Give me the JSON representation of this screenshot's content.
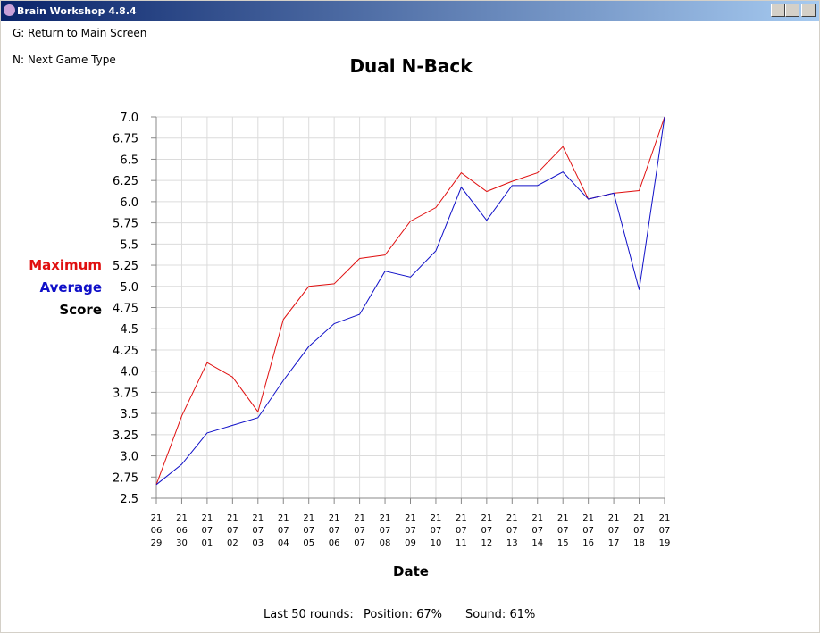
{
  "window": {
    "title": "Brain Workshop 4.8.4"
  },
  "menu": [
    "G: Return to Main Screen",
    "N: Next Game Type"
  ],
  "chart_data": {
    "type": "line",
    "title": "Dual N-Back",
    "xlabel": "Date",
    "ylabel": "Score",
    "categories": [
      [
        "21",
        "06",
        "29"
      ],
      [
        "21",
        "06",
        "30"
      ],
      [
        "21",
        "07",
        "01"
      ],
      [
        "21",
        "07",
        "02"
      ],
      [
        "21",
        "07",
        "03"
      ],
      [
        "21",
        "07",
        "04"
      ],
      [
        "21",
        "07",
        "05"
      ],
      [
        "21",
        "07",
        "06"
      ],
      [
        "21",
        "07",
        "07"
      ],
      [
        "21",
        "07",
        "08"
      ],
      [
        "21",
        "07",
        "09"
      ],
      [
        "21",
        "07",
        "10"
      ],
      [
        "21",
        "07",
        "11"
      ],
      [
        "21",
        "07",
        "12"
      ],
      [
        "21",
        "07",
        "13"
      ],
      [
        "21",
        "07",
        "14"
      ],
      [
        "21",
        "07",
        "15"
      ],
      [
        "21",
        "07",
        "16"
      ],
      [
        "21",
        "07",
        "17"
      ],
      [
        "21",
        "07",
        "18"
      ],
      [
        "21",
        "07",
        "19"
      ]
    ],
    "series": [
      {
        "name": "Maximum",
        "color": "#e01010",
        "values": [
          2.66,
          3.47,
          4.1,
          3.93,
          3.52,
          4.61,
          5.0,
          5.03,
          5.33,
          5.37,
          5.77,
          5.93,
          6.34,
          6.12,
          6.24,
          6.34,
          6.65,
          6.03,
          6.1,
          6.13,
          7.0
        ]
      },
      {
        "name": "Average",
        "color": "#1010c8",
        "values": [
          2.66,
          2.9,
          3.27,
          3.36,
          3.45,
          3.89,
          4.29,
          4.56,
          4.67,
          5.18,
          5.11,
          5.42,
          6.17,
          5.78,
          6.19,
          6.19,
          6.35,
          6.03,
          6.1,
          4.96,
          7.0
        ]
      }
    ],
    "ylim": [
      2.5,
      7
    ],
    "yticks": [
      2.5,
      {
        "value": 2.75,
        "label": "2.75"
      },
      {
        "value": 3,
        "label": "3.0"
      },
      3.25,
      3.5,
      3.75,
      {
        "value": 4,
        "label": "4.0"
      },
      4.25,
      4.5,
      4.75,
      {
        "value": 5,
        "label": "5.0"
      },
      5.25,
      5.5,
      5.75,
      {
        "value": 6,
        "label": "6.0"
      },
      6.25,
      6.5,
      6.75,
      {
        "value": 7,
        "label": "7.0"
      }
    ],
    "grid": true
  },
  "footer": [
    "Last 50 rounds:",
    "Position: 67%",
    "Sound: 61%"
  ]
}
